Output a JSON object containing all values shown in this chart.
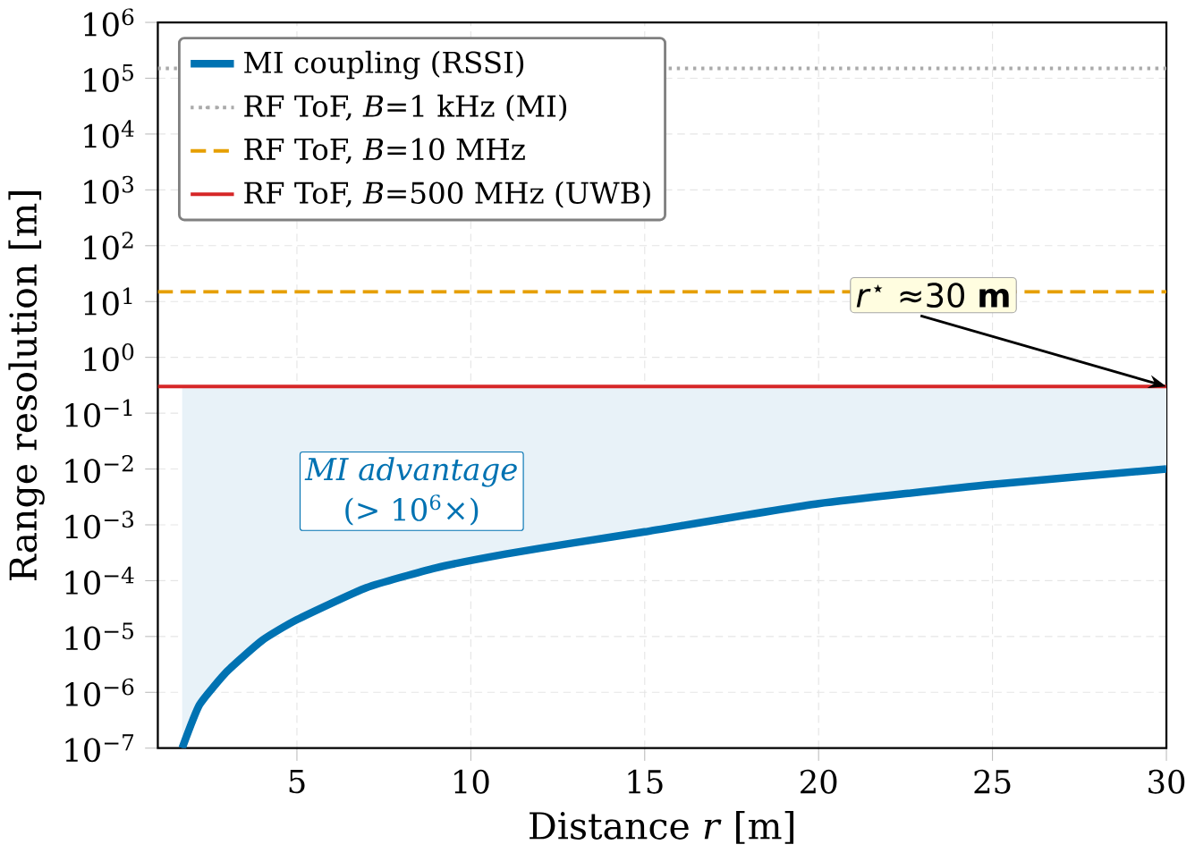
{
  "chart_data": {
    "type": "line",
    "xlabel": "Distance *r* [m]",
    "ylabel": "Range resolution [m]",
    "xlim": [
      1,
      30
    ],
    "xticks": [
      5,
      10,
      15,
      20,
      25,
      30
    ],
    "ylim": [
      1e-07,
      1000000.0
    ],
    "log": "y",
    "yticks": [
      {
        "value": 1e-07,
        "label": "10$^{−7}$"
      },
      {
        "value": 1e-06,
        "label": "10$^{−6}$"
      },
      {
        "value": 1e-05,
        "label": "10$^{−5}$"
      },
      {
        "value": 0.0001,
        "label": "10$^{−4}$"
      },
      {
        "value": 0.001,
        "label": "10$^{−3}$"
      },
      {
        "value": 0.01,
        "label": "10$^{−2}$"
      },
      {
        "value": 0.1,
        "label": "10$^{−1}$"
      },
      {
        "value": 1,
        "label": "10$^{0}$"
      },
      {
        "value": 10,
        "label": "10$^{1}$"
      },
      {
        "value": 100,
        "label": "10$^{2}$"
      },
      {
        "value": 1000,
        "label": "10$^{3}$"
      },
      {
        "value": 10000,
        "label": "10$^{4}$"
      },
      {
        "value": 100000,
        "label": "10$^{5}$"
      },
      {
        "value": 1000000,
        "label": "10$^{6}$"
      }
    ],
    "grid": true,
    "legend": "top left",
    "series": [
      {
        "name": "MI coupling (RSSI)",
        "color": "#0072b2",
        "line_style": "solid",
        "x": [
          1.7,
          2.2,
          3,
          4,
          5,
          7,
          9,
          11,
          13,
          15,
          20,
          25,
          30
        ],
        "values": [
          1e-07,
          6e-07,
          2.4e-06,
          8.5e-06,
          2e-05,
          7.5e-05,
          0.00017,
          0.0003,
          0.00048,
          0.00075,
          0.0024,
          0.0053,
          0.01
        ],
        "lower": [
          1e-07,
          6e-07,
          2.4e-06,
          8.5e-06,
          2e-05,
          7.5e-05,
          0.00017,
          0.0003,
          0.00048,
          0.00075,
          0.0024,
          0.0053,
          0.01
        ],
        "upper": [
          0.3,
          0.3,
          0.3,
          0.3,
          0.3,
          0.3,
          0.3,
          0.3,
          0.3,
          0.3,
          0.3,
          0.3,
          0.3
        ]
      },
      {
        "name": "RF ToF, *B*=1 kHz (MI)",
        "color": "#aaaaaa",
        "line_style": "dotted",
        "x": [
          1,
          30
        ],
        "values": [
          150000,
          150000
        ]
      },
      {
        "name": "RF ToF, *B*=10 MHz",
        "color": "#e69f00",
        "line_style": "dashed",
        "x": [
          1,
          30
        ],
        "values": [
          15,
          15
        ]
      },
      {
        "name": "RF ToF, *B*=500 MHz (UWB)",
        "color": "#d62728",
        "line_style": "solid",
        "x": [
          1,
          30
        ],
        "values": [
          0.3,
          0.3
        ]
      }
    ],
    "annotations": [
      {
        "text": "*r*$^{⋆}$ ≈30 **m**",
        "x": 30,
        "y": 0.3
      },
      "MI advantage",
      "(> 10$^{6}$×)"
    ]
  }
}
